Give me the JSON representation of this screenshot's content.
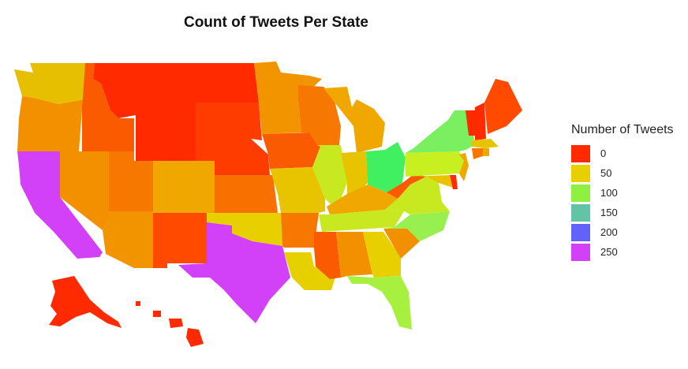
{
  "title": "Count of Tweets Per State",
  "legend": {
    "title": "Number of Tweets",
    "keys": [
      {
        "label": "0",
        "color": "#ff2a00"
      },
      {
        "label": "50",
        "color": "#e8d000"
      },
      {
        "label": "100",
        "color": "#90f040"
      },
      {
        "label": "150",
        "color": "#62c3a6"
      },
      {
        "label": "200",
        "color": "#6262fb"
      },
      {
        "label": "250",
        "color": "#d241f7"
      }
    ]
  },
  "states": [
    {
      "name": "WA",
      "color": "#e6c000"
    },
    {
      "name": "OR",
      "color": "#f29000"
    },
    {
      "name": "CA",
      "color": "#d241f7"
    },
    {
      "name": "NV",
      "color": "#f29000"
    },
    {
      "name": "ID",
      "color": "#fa5a00"
    },
    {
      "name": "MT",
      "color": "#ff2a00"
    },
    {
      "name": "WY",
      "color": "#ff2a00"
    },
    {
      "name": "UT",
      "color": "#f67800"
    },
    {
      "name": "AZ",
      "color": "#f29400"
    },
    {
      "name": "CO",
      "color": "#f0a800"
    },
    {
      "name": "NM",
      "color": "#ff4a00"
    },
    {
      "name": "ND",
      "color": "#ff2a00"
    },
    {
      "name": "SD",
      "color": "#fe3c00"
    },
    {
      "name": "NE",
      "color": "#fe3c00"
    },
    {
      "name": "KS",
      "color": "#f87000"
    },
    {
      "name": "OK",
      "color": "#e8d000"
    },
    {
      "name": "TX",
      "color": "#d241f7"
    },
    {
      "name": "MN",
      "color": "#f29400"
    },
    {
      "name": "IA",
      "color": "#fa5a00"
    },
    {
      "name": "MO",
      "color": "#e8c400"
    },
    {
      "name": "AR",
      "color": "#f67800"
    },
    {
      "name": "LA",
      "color": "#e6d000"
    },
    {
      "name": "WI",
      "color": "#f67800"
    },
    {
      "name": "IL",
      "color": "#c8e820"
    },
    {
      "name": "MI",
      "color": "#f0a800"
    },
    {
      "name": "IN",
      "color": "#e8c400"
    },
    {
      "name": "OH",
      "color": "#40f060"
    },
    {
      "name": "KY",
      "color": "#f0a800"
    },
    {
      "name": "TN",
      "color": "#c8e820"
    },
    {
      "name": "MS",
      "color": "#fa5a00"
    },
    {
      "name": "AL",
      "color": "#f29000"
    },
    {
      "name": "GA",
      "color": "#e8d000"
    },
    {
      "name": "FL",
      "color": "#a8f040"
    },
    {
      "name": "SC",
      "color": "#f29000"
    },
    {
      "name": "NC",
      "color": "#98f050"
    },
    {
      "name": "VA",
      "color": "#c8e820"
    },
    {
      "name": "WV",
      "color": "#fa5a00"
    },
    {
      "name": "PA",
      "color": "#c8f020"
    },
    {
      "name": "NY",
      "color": "#7af060"
    },
    {
      "name": "NJ",
      "color": "#f0a800"
    },
    {
      "name": "MD",
      "color": "#e8c400"
    },
    {
      "name": "DE",
      "color": "#ff2a00"
    },
    {
      "name": "VT",
      "color": "#ff2a00"
    },
    {
      "name": "NH",
      "color": "#ff2a00"
    },
    {
      "name": "ME",
      "color": "#ff4a00"
    },
    {
      "name": "MA",
      "color": "#e8c400"
    },
    {
      "name": "CT",
      "color": "#f67800"
    },
    {
      "name": "RI",
      "color": "#f0a800"
    },
    {
      "name": "AK",
      "color": "#ff2a00"
    },
    {
      "name": "HI",
      "color": "#ff2a00"
    }
  ]
}
